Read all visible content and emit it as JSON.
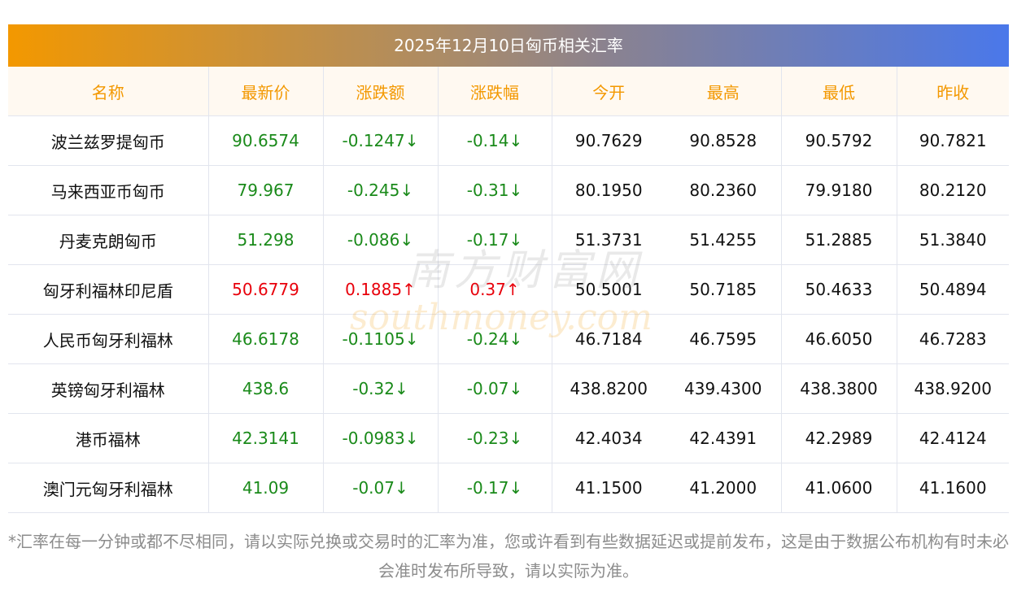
{
  "title": "2025年12月10日匈币相关汇率",
  "columns": [
    "名称",
    "最新价",
    "涨跌额",
    "涨跌幅",
    "今开",
    "最高",
    "最低",
    "昨收"
  ],
  "rows": [
    {
      "name": "波兰兹罗提匈币",
      "latest": "90.6574",
      "change": "-0.1247↓",
      "pct": "-0.14↓",
      "open": "90.7629",
      "high": "90.8528",
      "low": "90.5792",
      "prev": "90.7821",
      "dir": "down"
    },
    {
      "name": "马来西亚币匈币",
      "latest": "79.967",
      "change": "-0.245↓",
      "pct": "-0.31↓",
      "open": "80.1950",
      "high": "80.2360",
      "low": "79.9180",
      "prev": "80.2120",
      "dir": "down"
    },
    {
      "name": "丹麦克朗匈币",
      "latest": "51.298",
      "change": "-0.086↓",
      "pct": "-0.17↓",
      "open": "51.3731",
      "high": "51.4255",
      "low": "51.2885",
      "prev": "51.3840",
      "dir": "down"
    },
    {
      "name": "匈牙利福林印尼盾",
      "latest": "50.6779",
      "change": "0.1885↑",
      "pct": "0.37↑",
      "open": "50.5001",
      "high": "50.7185",
      "low": "50.4633",
      "prev": "50.4894",
      "dir": "up"
    },
    {
      "name": "人民币匈牙利福林",
      "latest": "46.6178",
      "change": "-0.1105↓",
      "pct": "-0.24↓",
      "open": "46.7184",
      "high": "46.7595",
      "low": "46.6050",
      "prev": "46.7283",
      "dir": "down"
    },
    {
      "name": "英镑匈牙利福林",
      "latest": "438.6",
      "change": "-0.32↓",
      "pct": "-0.07↓",
      "open": "438.8200",
      "high": "439.4300",
      "low": "438.3800",
      "prev": "438.9200",
      "dir": "down"
    },
    {
      "name": "港币福林",
      "latest": "42.3141",
      "change": "-0.0983↓",
      "pct": "-0.23↓",
      "open": "42.4034",
      "high": "42.4391",
      "low": "42.2989",
      "prev": "42.4124",
      "dir": "down"
    },
    {
      "name": "澳门元匈牙利福林",
      "latest": "41.09",
      "change": "-0.07↓",
      "pct": "-0.17↓",
      "open": "41.1500",
      "high": "41.2000",
      "low": "41.0600",
      "prev": "41.1600",
      "dir": "down"
    }
  ],
  "watermark": {
    "cn": "南方财富网",
    "en": "southmoney.com"
  },
  "colors": {
    "up": "#e8000b",
    "down": "#1a8a1a",
    "header": "#f39800"
  },
  "note": "*汇率在每一分钟或都不尽相同，请以实际兑换或交易时的汇率为准，您或许看到有些数据延迟或提前发布，这是由于数据公布机构有时未必会准时发布所导致，请以实际为准。"
}
